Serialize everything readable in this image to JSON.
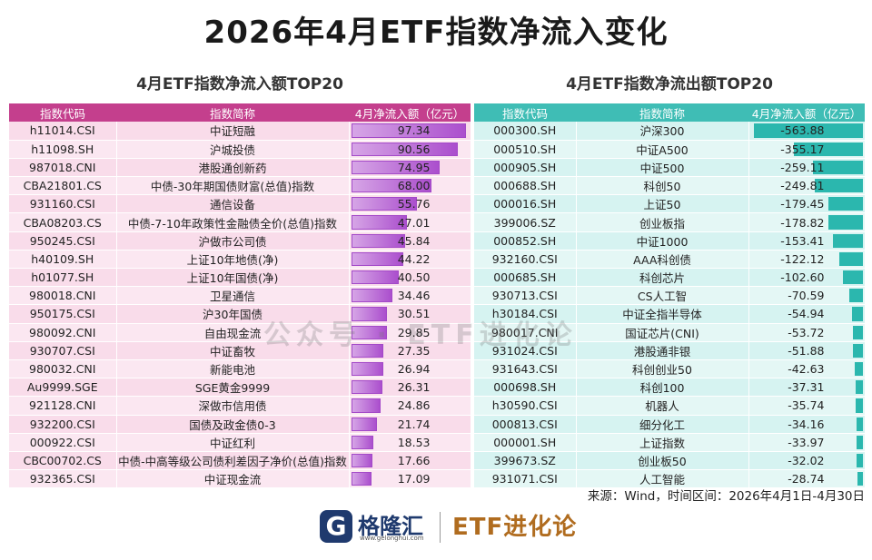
{
  "title": "2026年4月ETF指数净流入变化",
  "left_table": {
    "subtitle": "4月ETF指数净流入额TOP20",
    "headers": [
      "指数代码",
      "指数简称",
      "4月净流入额（亿元）"
    ],
    "rows": [
      {
        "code": "h11014.CSI",
        "name": "中证短融",
        "value": "97.34",
        "v": 97.34
      },
      {
        "code": "h11098.SH",
        "name": "沪城投债",
        "value": "90.56",
        "v": 90.56
      },
      {
        "code": "987018.CNI",
        "name": "港股通创新药",
        "value": "74.95",
        "v": 74.95
      },
      {
        "code": "CBA21801.CS",
        "name": "中债-30年期国债财富(总值)指数",
        "value": "68.00",
        "v": 68.0
      },
      {
        "code": "931160.CSI",
        "name": "通信设备",
        "value": "55.76",
        "v": 55.76
      },
      {
        "code": "CBA08203.CS",
        "name": "中债-7-10年政策性金融债全价(总值)指数",
        "value": "47.01",
        "v": 47.01
      },
      {
        "code": "950245.CSI",
        "name": "沪做市公司债",
        "value": "45.84",
        "v": 45.84
      },
      {
        "code": "h40109.SH",
        "name": "上证10年地债(净)",
        "value": "44.22",
        "v": 44.22
      },
      {
        "code": "h01077.SH",
        "name": "上证10年国债(净)",
        "value": "40.50",
        "v": 40.5
      },
      {
        "code": "980018.CNI",
        "name": "卫星通信",
        "value": "34.46",
        "v": 34.46
      },
      {
        "code": "950175.CSI",
        "name": "沪30年国债",
        "value": "30.51",
        "v": 30.51
      },
      {
        "code": "980092.CNI",
        "name": "自由现金流",
        "value": "29.85",
        "v": 29.85
      },
      {
        "code": "930707.CSI",
        "name": "中证畜牧",
        "value": "27.35",
        "v": 27.35
      },
      {
        "code": "980032.CNI",
        "name": "新能电池",
        "value": "26.94",
        "v": 26.94
      },
      {
        "code": "Au9999.SGE",
        "name": "SGE黄金9999",
        "value": "26.31",
        "v": 26.31
      },
      {
        "code": "921128.CNI",
        "name": "深做市信用债",
        "value": "24.86",
        "v": 24.86
      },
      {
        "code": "932200.CSI",
        "name": "国债及政金债0-3",
        "value": "21.74",
        "v": 21.74
      },
      {
        "code": "000922.CSI",
        "name": "中证红利",
        "value": "18.53",
        "v": 18.53
      },
      {
        "code": "CBC00702.CS",
        "name": "中债-中高等级公司债利差因子净价(总值)指数",
        "value": "17.66",
        "v": 17.66
      },
      {
        "code": "932365.CSI",
        "name": "中证现金流",
        "value": "17.09",
        "v": 17.09
      }
    ]
  },
  "right_table": {
    "subtitle": "4月ETF指数净流出额TOP20",
    "headers": [
      "指数代码",
      "指数简称",
      "4月净流入额（亿元）"
    ],
    "rows": [
      {
        "code": "000300.SH",
        "name": "沪深300",
        "value": "-563.88",
        "v": 563.88
      },
      {
        "code": "000510.SH",
        "name": "中证A500",
        "value": "-355.17",
        "v": 355.17
      },
      {
        "code": "000905.SH",
        "name": "中证500",
        "value": "-259.11",
        "v": 259.11
      },
      {
        "code": "000688.SH",
        "name": "科创50",
        "value": "-249.81",
        "v": 249.81
      },
      {
        "code": "000016.SH",
        "name": "上证50",
        "value": "-179.45",
        "v": 179.45
      },
      {
        "code": "399006.SZ",
        "name": "创业板指",
        "value": "-178.82",
        "v": 178.82
      },
      {
        "code": "000852.SH",
        "name": "中证1000",
        "value": "-153.41",
        "v": 153.41
      },
      {
        "code": "932160.CSI",
        "name": "AAA科创债",
        "value": "-122.12",
        "v": 122.12
      },
      {
        "code": "000685.SH",
        "name": "科创芯片",
        "value": "-102.60",
        "v": 102.6
      },
      {
        "code": "930713.CSI",
        "name": "CS人工智",
        "value": "-70.59",
        "v": 70.59
      },
      {
        "code": "h30184.CSI",
        "name": "中证全指半导体",
        "value": "-54.94",
        "v": 54.94
      },
      {
        "code": "980017.CNI",
        "name": "国证芯片(CNI)",
        "value": "-53.72",
        "v": 53.72
      },
      {
        "code": "931024.CSI",
        "name": "港股通非银",
        "value": "-51.88",
        "v": 51.88
      },
      {
        "code": "931643.CSI",
        "name": "科创创业50",
        "value": "-42.63",
        "v": 42.63
      },
      {
        "code": "000698.SH",
        "name": "科创100",
        "value": "-37.31",
        "v": 37.31
      },
      {
        "code": "h30590.CSI",
        "name": "机器人",
        "value": "-35.74",
        "v": 35.74
      },
      {
        "code": "000813.CSI",
        "name": "细分化工",
        "value": "-34.16",
        "v": 34.16
      },
      {
        "code": "000001.SH",
        "name": "上证指数",
        "value": "-33.97",
        "v": 33.97
      },
      {
        "code": "399673.SZ",
        "name": "创业板50",
        "value": "-32.02",
        "v": 32.02
      },
      {
        "code": "931071.CSI",
        "name": "人工智能",
        "value": "-28.74",
        "v": 28.74
      }
    ]
  },
  "watermark": "公众号 · ETF进化论",
  "source": "来源：Wind，时间区间：2026年4月1日-4月30日",
  "footer": {
    "logo_letter": "G",
    "logo_cn": "格隆汇",
    "logo_url": "www.gelonghui.com",
    "brand": "ETF进化论"
  },
  "colors": {
    "inflow_header": "#c43f8d",
    "outflow_header": "#3fbdb5",
    "inflow_bar": "#ab4fcd",
    "outflow_bar": "#2bb7ae"
  }
}
